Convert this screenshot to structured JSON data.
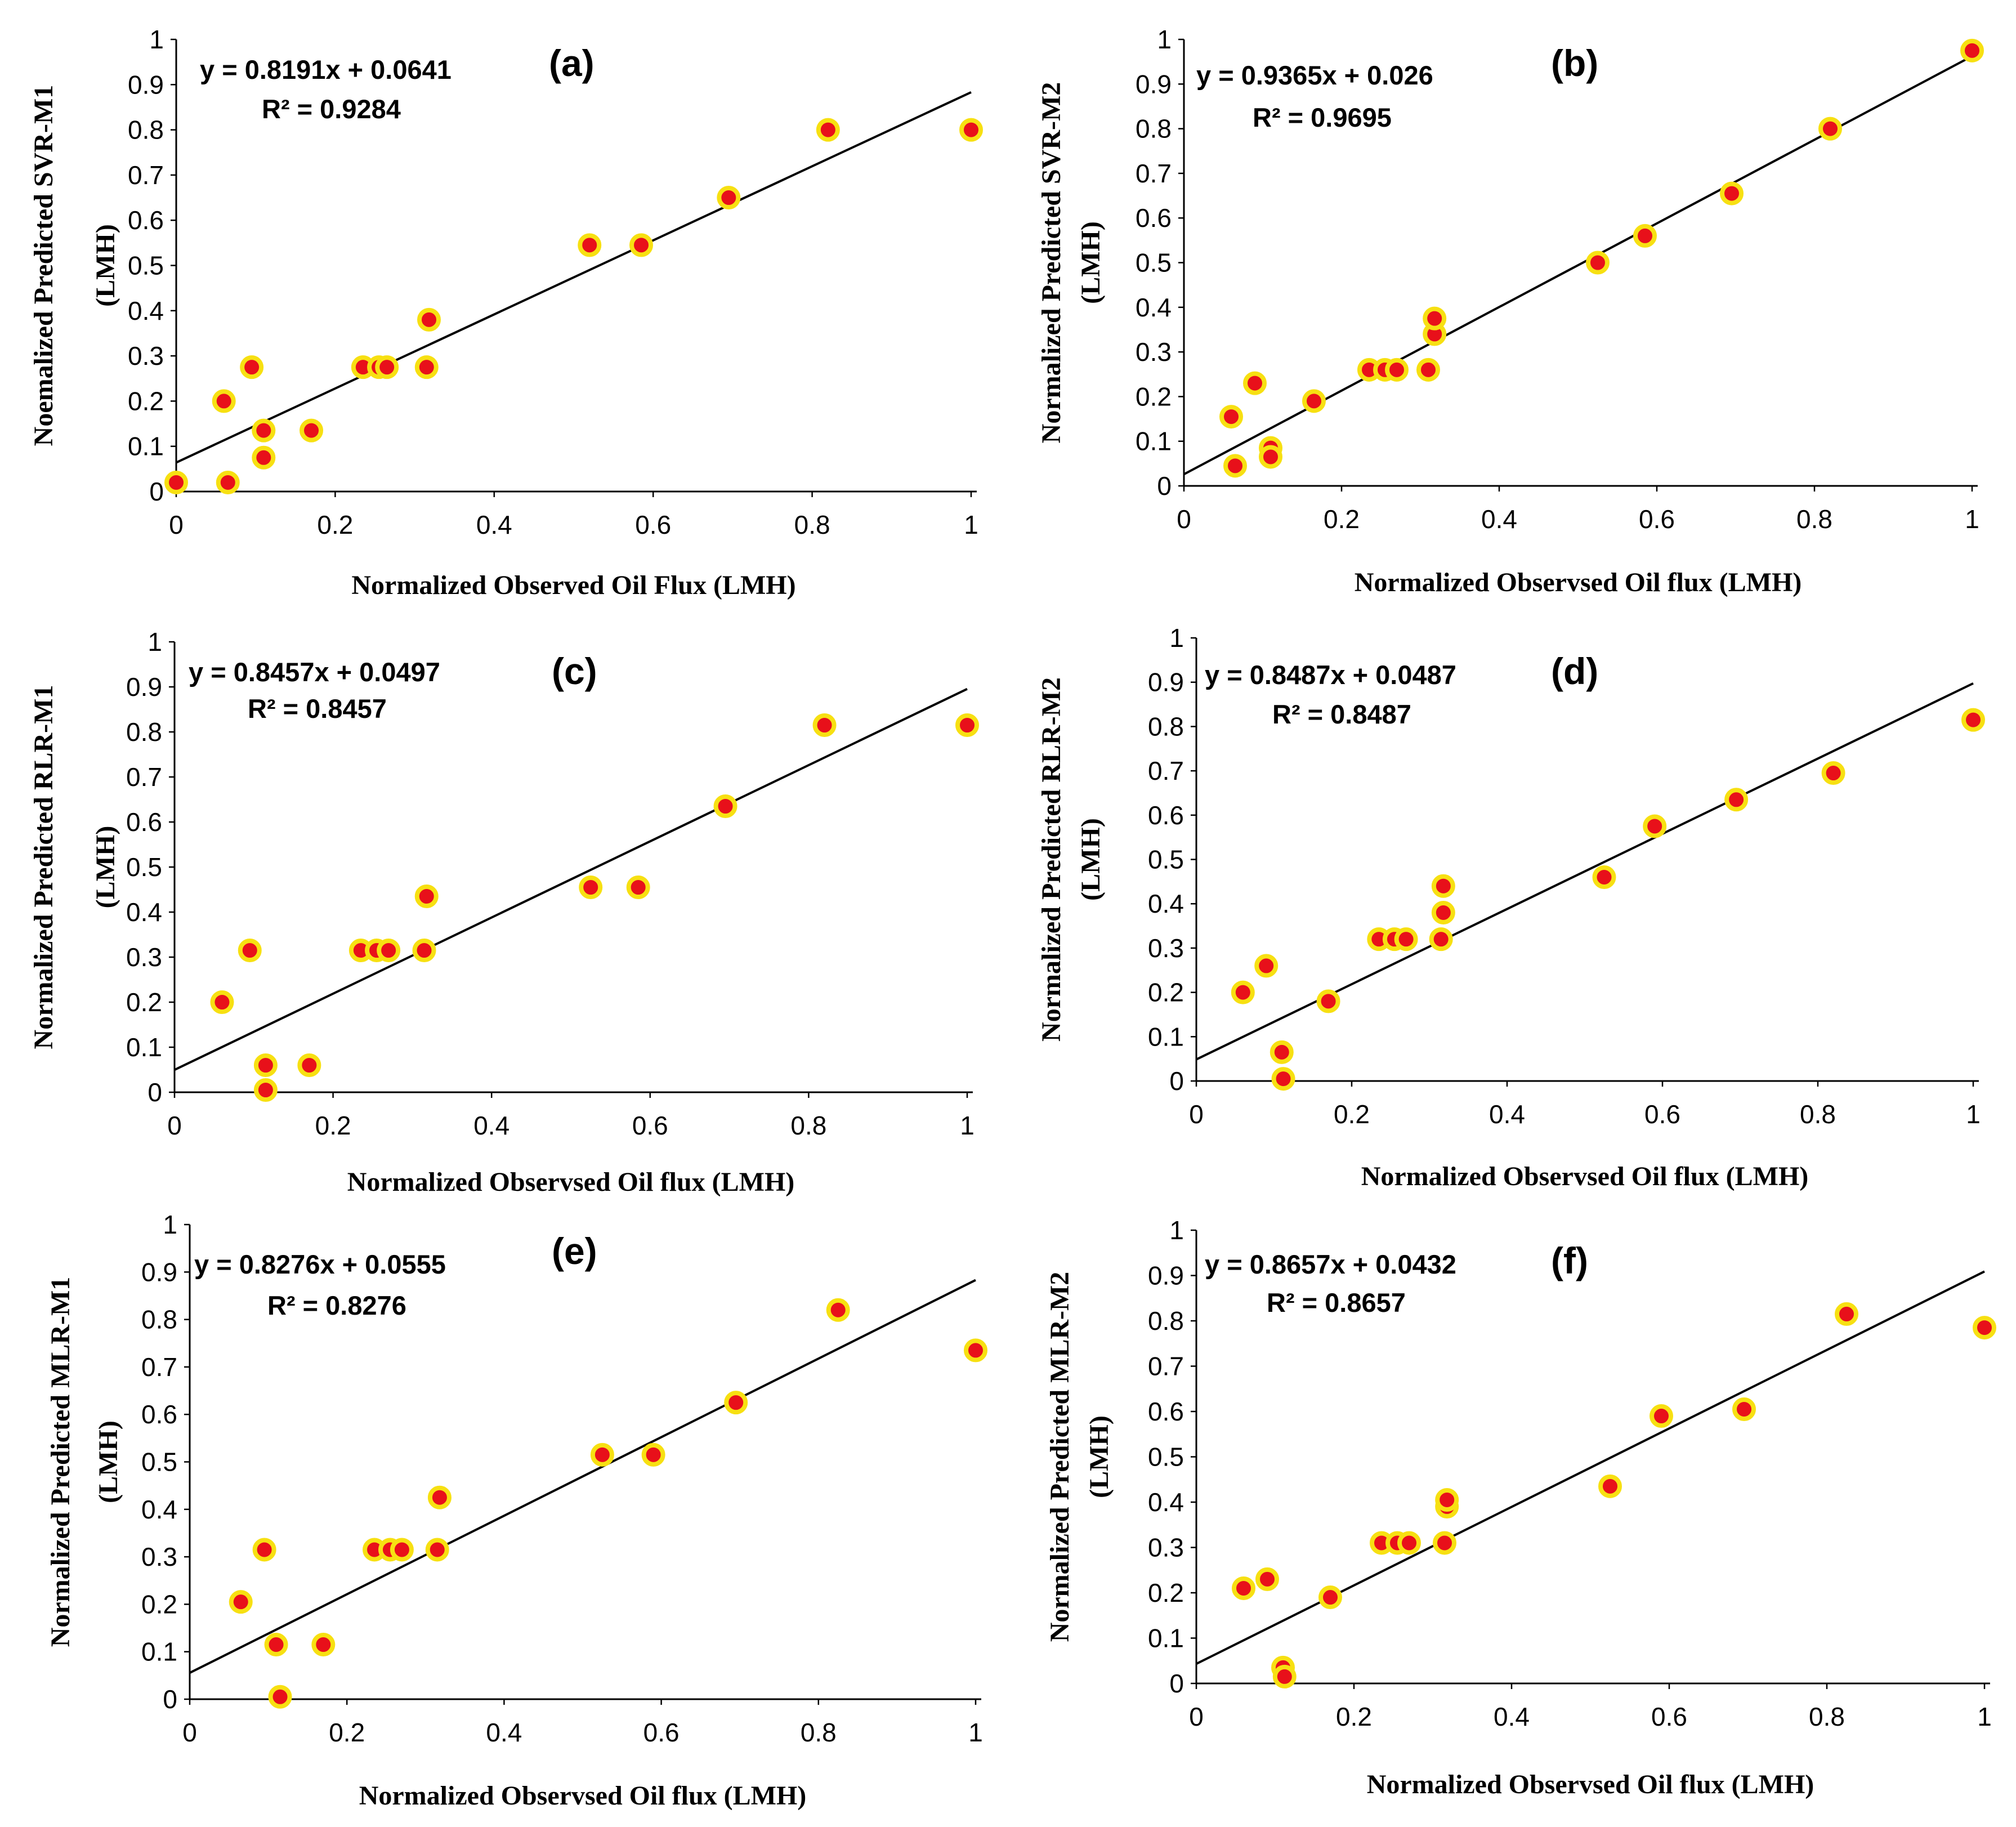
{
  "style": {
    "marker_fill": "#e8101a",
    "marker_ring": "#f7e012",
    "line_color": "#000000",
    "axis_color": "#000000"
  },
  "chart_data": [
    {
      "id": "a",
      "type": "scatter",
      "panel_label": "(a)",
      "xlabel": "Normalized Observed Oil Flux (LMH)",
      "ylabel": [
        "Noemalized Predicted SVR-M1",
        "(LMH)"
      ],
      "equation": "y = 0.8191x + 0.0641",
      "r2": "R² = 0.9284",
      "xlim": [
        0,
        1
      ],
      "ylim": [
        0,
        1
      ],
      "xticks": [
        "0",
        "0.2",
        "0.4",
        "0.6",
        "0.8",
        "1"
      ],
      "yticks": [
        "0",
        "0.1",
        "0.2",
        "0.3",
        "0.4",
        "0.5",
        "0.6",
        "0.7",
        "0.8",
        "0.9",
        "1"
      ],
      "fit": {
        "slope": 0.8191,
        "intercept": 0.0641
      },
      "points": [
        [
          0.0,
          0.02
        ],
        [
          0.065,
          0.02
        ],
        [
          0.06,
          0.2
        ],
        [
          0.095,
          0.275
        ],
        [
          0.11,
          0.135
        ],
        [
          0.11,
          0.075
        ],
        [
          0.17,
          0.135
        ],
        [
          0.235,
          0.275
        ],
        [
          0.255,
          0.275
        ],
        [
          0.265,
          0.275
        ],
        [
          0.315,
          0.275
        ],
        [
          0.318,
          0.38
        ],
        [
          0.52,
          0.545
        ],
        [
          0.585,
          0.545
        ],
        [
          0.695,
          0.65
        ],
        [
          0.82,
          0.8
        ],
        [
          1.0,
          0.8
        ]
      ]
    },
    {
      "id": "b",
      "type": "scatter",
      "panel_label": "(b)",
      "xlabel": "Normalized Observsed Oil flux (LMH)",
      "ylabel": [
        "Normalized Predicted SVR-M2",
        "(LMH)"
      ],
      "equation": "y = 0.9365x + 0.026",
      "r2": "R² = 0.9695",
      "xlim": [
        0,
        1
      ],
      "ylim": [
        0,
        1
      ],
      "xticks": [
        "0",
        "0.2",
        "0.4",
        "0.6",
        "0.8",
        "1"
      ],
      "yticks": [
        "0",
        "0.1",
        "0.2",
        "0.3",
        "0.4",
        "0.5",
        "0.6",
        "0.7",
        "0.8",
        "0.9",
        "1"
      ],
      "fit": {
        "slope": 0.9365,
        "intercept": 0.026
      },
      "points": [
        [
          0.06,
          0.155
        ],
        [
          0.065,
          0.045
        ],
        [
          0.09,
          0.23
        ],
        [
          0.11,
          0.085
        ],
        [
          0.11,
          0.065
        ],
        [
          0.165,
          0.19
        ],
        [
          0.235,
          0.26
        ],
        [
          0.255,
          0.26
        ],
        [
          0.27,
          0.26
        ],
        [
          0.31,
          0.26
        ],
        [
          0.318,
          0.34
        ],
        [
          0.318,
          0.375
        ],
        [
          0.525,
          0.5
        ],
        [
          0.585,
          0.56
        ],
        [
          0.695,
          0.655
        ],
        [
          0.82,
          0.8
        ],
        [
          1.0,
          0.975
        ]
      ]
    },
    {
      "id": "c",
      "type": "scatter",
      "panel_label": "(c)",
      "xlabel": "Normalized Observsed Oil flux (LMH)",
      "ylabel": [
        "Normalized Predicted RLR-M1",
        "(LMH)"
      ],
      "equation": "y = 0.8457x + 0.0497",
      "r2": "R² = 0.8457",
      "xlim": [
        0,
        1
      ],
      "ylim": [
        0,
        1
      ],
      "xticks": [
        "0",
        "0.2",
        "0.4",
        "0.6",
        "0.8",
        "1"
      ],
      "yticks": [
        "0",
        "0.1",
        "0.2",
        "0.3",
        "0.4",
        "0.5",
        "0.6",
        "0.7",
        "0.8",
        "0.9",
        "1"
      ],
      "fit": {
        "slope": 0.8457,
        "intercept": 0.0497
      },
      "points": [
        [
          0.06,
          0.2
        ],
        [
          0.095,
          0.315
        ],
        [
          0.115,
          0.06
        ],
        [
          0.115,
          0.005
        ],
        [
          0.17,
          0.06
        ],
        [
          0.235,
          0.315
        ],
        [
          0.255,
          0.315
        ],
        [
          0.27,
          0.315
        ],
        [
          0.315,
          0.315
        ],
        [
          0.318,
          0.435
        ],
        [
          0.525,
          0.455
        ],
        [
          0.585,
          0.455
        ],
        [
          0.695,
          0.635
        ],
        [
          0.82,
          0.815
        ],
        [
          1.0,
          0.815
        ]
      ]
    },
    {
      "id": "d",
      "type": "scatter",
      "panel_label": "(d)",
      "xlabel": "Normalized Observsed Oil flux (LMH)",
      "ylabel": [
        "Normalized Predicted RLR-M2",
        "(LMH)"
      ],
      "equation": "y = 0.8487x + 0.0487",
      "r2": "R² = 0.8487",
      "xlim": [
        0,
        1
      ],
      "ylim": [
        0,
        1
      ],
      "xticks": [
        "0",
        "0.2",
        "0.4",
        "0.6",
        "0.8",
        "1"
      ],
      "yticks": [
        "0",
        "0.1",
        "0.2",
        "0.3",
        "0.4",
        "0.5",
        "0.6",
        "0.7",
        "0.8",
        "0.9",
        "1"
      ],
      "fit": {
        "slope": 0.8487,
        "intercept": 0.0487
      },
      "points": [
        [
          0.06,
          0.2
        ],
        [
          0.09,
          0.26
        ],
        [
          0.11,
          0.065
        ],
        [
          0.112,
          0.005
        ],
        [
          0.17,
          0.18
        ],
        [
          0.235,
          0.32
        ],
        [
          0.255,
          0.32
        ],
        [
          0.27,
          0.32
        ],
        [
          0.315,
          0.32
        ],
        [
          0.318,
          0.38
        ],
        [
          0.318,
          0.44
        ],
        [
          0.525,
          0.46
        ],
        [
          0.59,
          0.575
        ],
        [
          0.695,
          0.635
        ],
        [
          0.82,
          0.695
        ],
        [
          1.0,
          0.815
        ]
      ]
    },
    {
      "id": "e",
      "type": "scatter",
      "panel_label": "(e)",
      "xlabel": "Normalized Observsed Oil flux (LMH)",
      "ylabel": [
        "Normalized Predicted MLR-M1",
        "(LMH)"
      ],
      "equation": "y = 0.8276x + 0.0555",
      "r2": "R² = 0.8276",
      "xlim": [
        0,
        1
      ],
      "ylim": [
        0,
        1
      ],
      "xticks": [
        "0",
        "0.2",
        "0.4",
        "0.6",
        "0.8",
        "1"
      ],
      "yticks": [
        "0",
        "0.1",
        "0.2",
        "0.3",
        "0.4",
        "0.5",
        "0.6",
        "0.7",
        "0.8",
        "0.9",
        "1"
      ],
      "fit": {
        "slope": 0.8276,
        "intercept": 0.0555
      },
      "points": [
        [
          0.065,
          0.205
        ],
        [
          0.095,
          0.315
        ],
        [
          0.11,
          0.115
        ],
        [
          0.115,
          0.005
        ],
        [
          0.17,
          0.115
        ],
        [
          0.235,
          0.315
        ],
        [
          0.255,
          0.315
        ],
        [
          0.27,
          0.315
        ],
        [
          0.315,
          0.315
        ],
        [
          0.318,
          0.425
        ],
        [
          0.525,
          0.515
        ],
        [
          0.59,
          0.515
        ],
        [
          0.695,
          0.625
        ],
        [
          0.825,
          0.82
        ],
        [
          1.0,
          0.735
        ]
      ]
    },
    {
      "id": "f",
      "type": "scatter",
      "panel_label": "(f)",
      "xlabel": "Normalized Observsed Oil flux (LMH)",
      "ylabel": [
        "Normalized Predicted MLR-M2",
        "(LMH)"
      ],
      "equation": "y = 0.8657x + 0.0432",
      "r2": "R² = 0.8657",
      "xlim": [
        0,
        1
      ],
      "ylim": [
        0,
        1
      ],
      "xticks": [
        "0",
        "0.2",
        "0.4",
        "0.6",
        "0.8",
        "1"
      ],
      "yticks": [
        "0",
        "0.1",
        "0.2",
        "0.3",
        "0.4",
        "0.5",
        "0.6",
        "0.7",
        "0.8",
        "0.9",
        "1"
      ],
      "fit": {
        "slope": 0.8657,
        "intercept": 0.0432
      },
      "points": [
        [
          0.06,
          0.21
        ],
        [
          0.09,
          0.23
        ],
        [
          0.11,
          0.035
        ],
        [
          0.112,
          0.015
        ],
        [
          0.17,
          0.19
        ],
        [
          0.235,
          0.31
        ],
        [
          0.255,
          0.31
        ],
        [
          0.27,
          0.31
        ],
        [
          0.315,
          0.31
        ],
        [
          0.318,
          0.39
        ],
        [
          0.318,
          0.405
        ],
        [
          0.525,
          0.435
        ],
        [
          0.59,
          0.59
        ],
        [
          0.695,
          0.605
        ],
        [
          0.825,
          0.815
        ],
        [
          1.0,
          0.785
        ]
      ]
    }
  ]
}
